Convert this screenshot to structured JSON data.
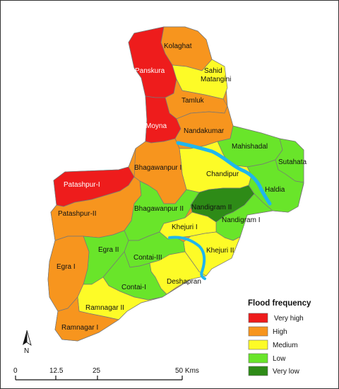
{
  "colors": {
    "very_high": "#ee1c1c",
    "high": "#f7951e",
    "medium": "#fdfb27",
    "low": "#69e52a",
    "very_low": "#2e8b17",
    "river": "#1fb6ee",
    "frame": "#333333"
  },
  "blocks": [
    {
      "name": "Kolaghat",
      "class": "high"
    },
    {
      "name": "Panskura",
      "class": "very_high"
    },
    {
      "name": "Sahid",
      "name2": "Matangini",
      "class": "medium"
    },
    {
      "name": "Tamluk",
      "class": "high"
    },
    {
      "name": "Moyna",
      "class": "very_high"
    },
    {
      "name": "Nandakumar",
      "class": "high"
    },
    {
      "name": "Mahishadal",
      "class": "low"
    },
    {
      "name": "Sutahata",
      "class": "low"
    },
    {
      "name": "Haldia",
      "class": "low"
    },
    {
      "name": "Chandipur",
      "class": "medium"
    },
    {
      "name": "Bhagawanpur I",
      "class": "high"
    },
    {
      "name": "Patashpur-I",
      "class": "very_high"
    },
    {
      "name": "Patashpur-II",
      "class": "high"
    },
    {
      "name": "Bhagawanpur II",
      "class": "low"
    },
    {
      "name": "Nandigram II",
      "class": "very_low"
    },
    {
      "name": "Nandigram I",
      "class": "low"
    },
    {
      "name": "Khejuri I",
      "class": "medium"
    },
    {
      "name": "Khejuri II",
      "class": "medium"
    },
    {
      "name": "Egra II",
      "class": "low"
    },
    {
      "name": "Contai-III",
      "class": "low"
    },
    {
      "name": "Egra I",
      "class": "high"
    },
    {
      "name": "Deshapran",
      "class": "medium"
    },
    {
      "name": "Contai-I",
      "class": "low"
    },
    {
      "name": "Ramnagar II",
      "class": "medium"
    },
    {
      "name": "Ramnagar I",
      "class": "high"
    }
  ],
  "legend": {
    "title": "Flood frequency",
    "items": [
      {
        "key": "very_high",
        "label": "Very high"
      },
      {
        "key": "high",
        "label": "High"
      },
      {
        "key": "medium",
        "label": "Medium"
      },
      {
        "key": "low",
        "label": "Low"
      },
      {
        "key": "very_low",
        "label": "Very low"
      }
    ]
  },
  "north_arrow": {
    "label": "N"
  },
  "scale_bar": {
    "ticks": [
      "0",
      "12.5",
      "25",
      "50 Kms"
    ]
  }
}
